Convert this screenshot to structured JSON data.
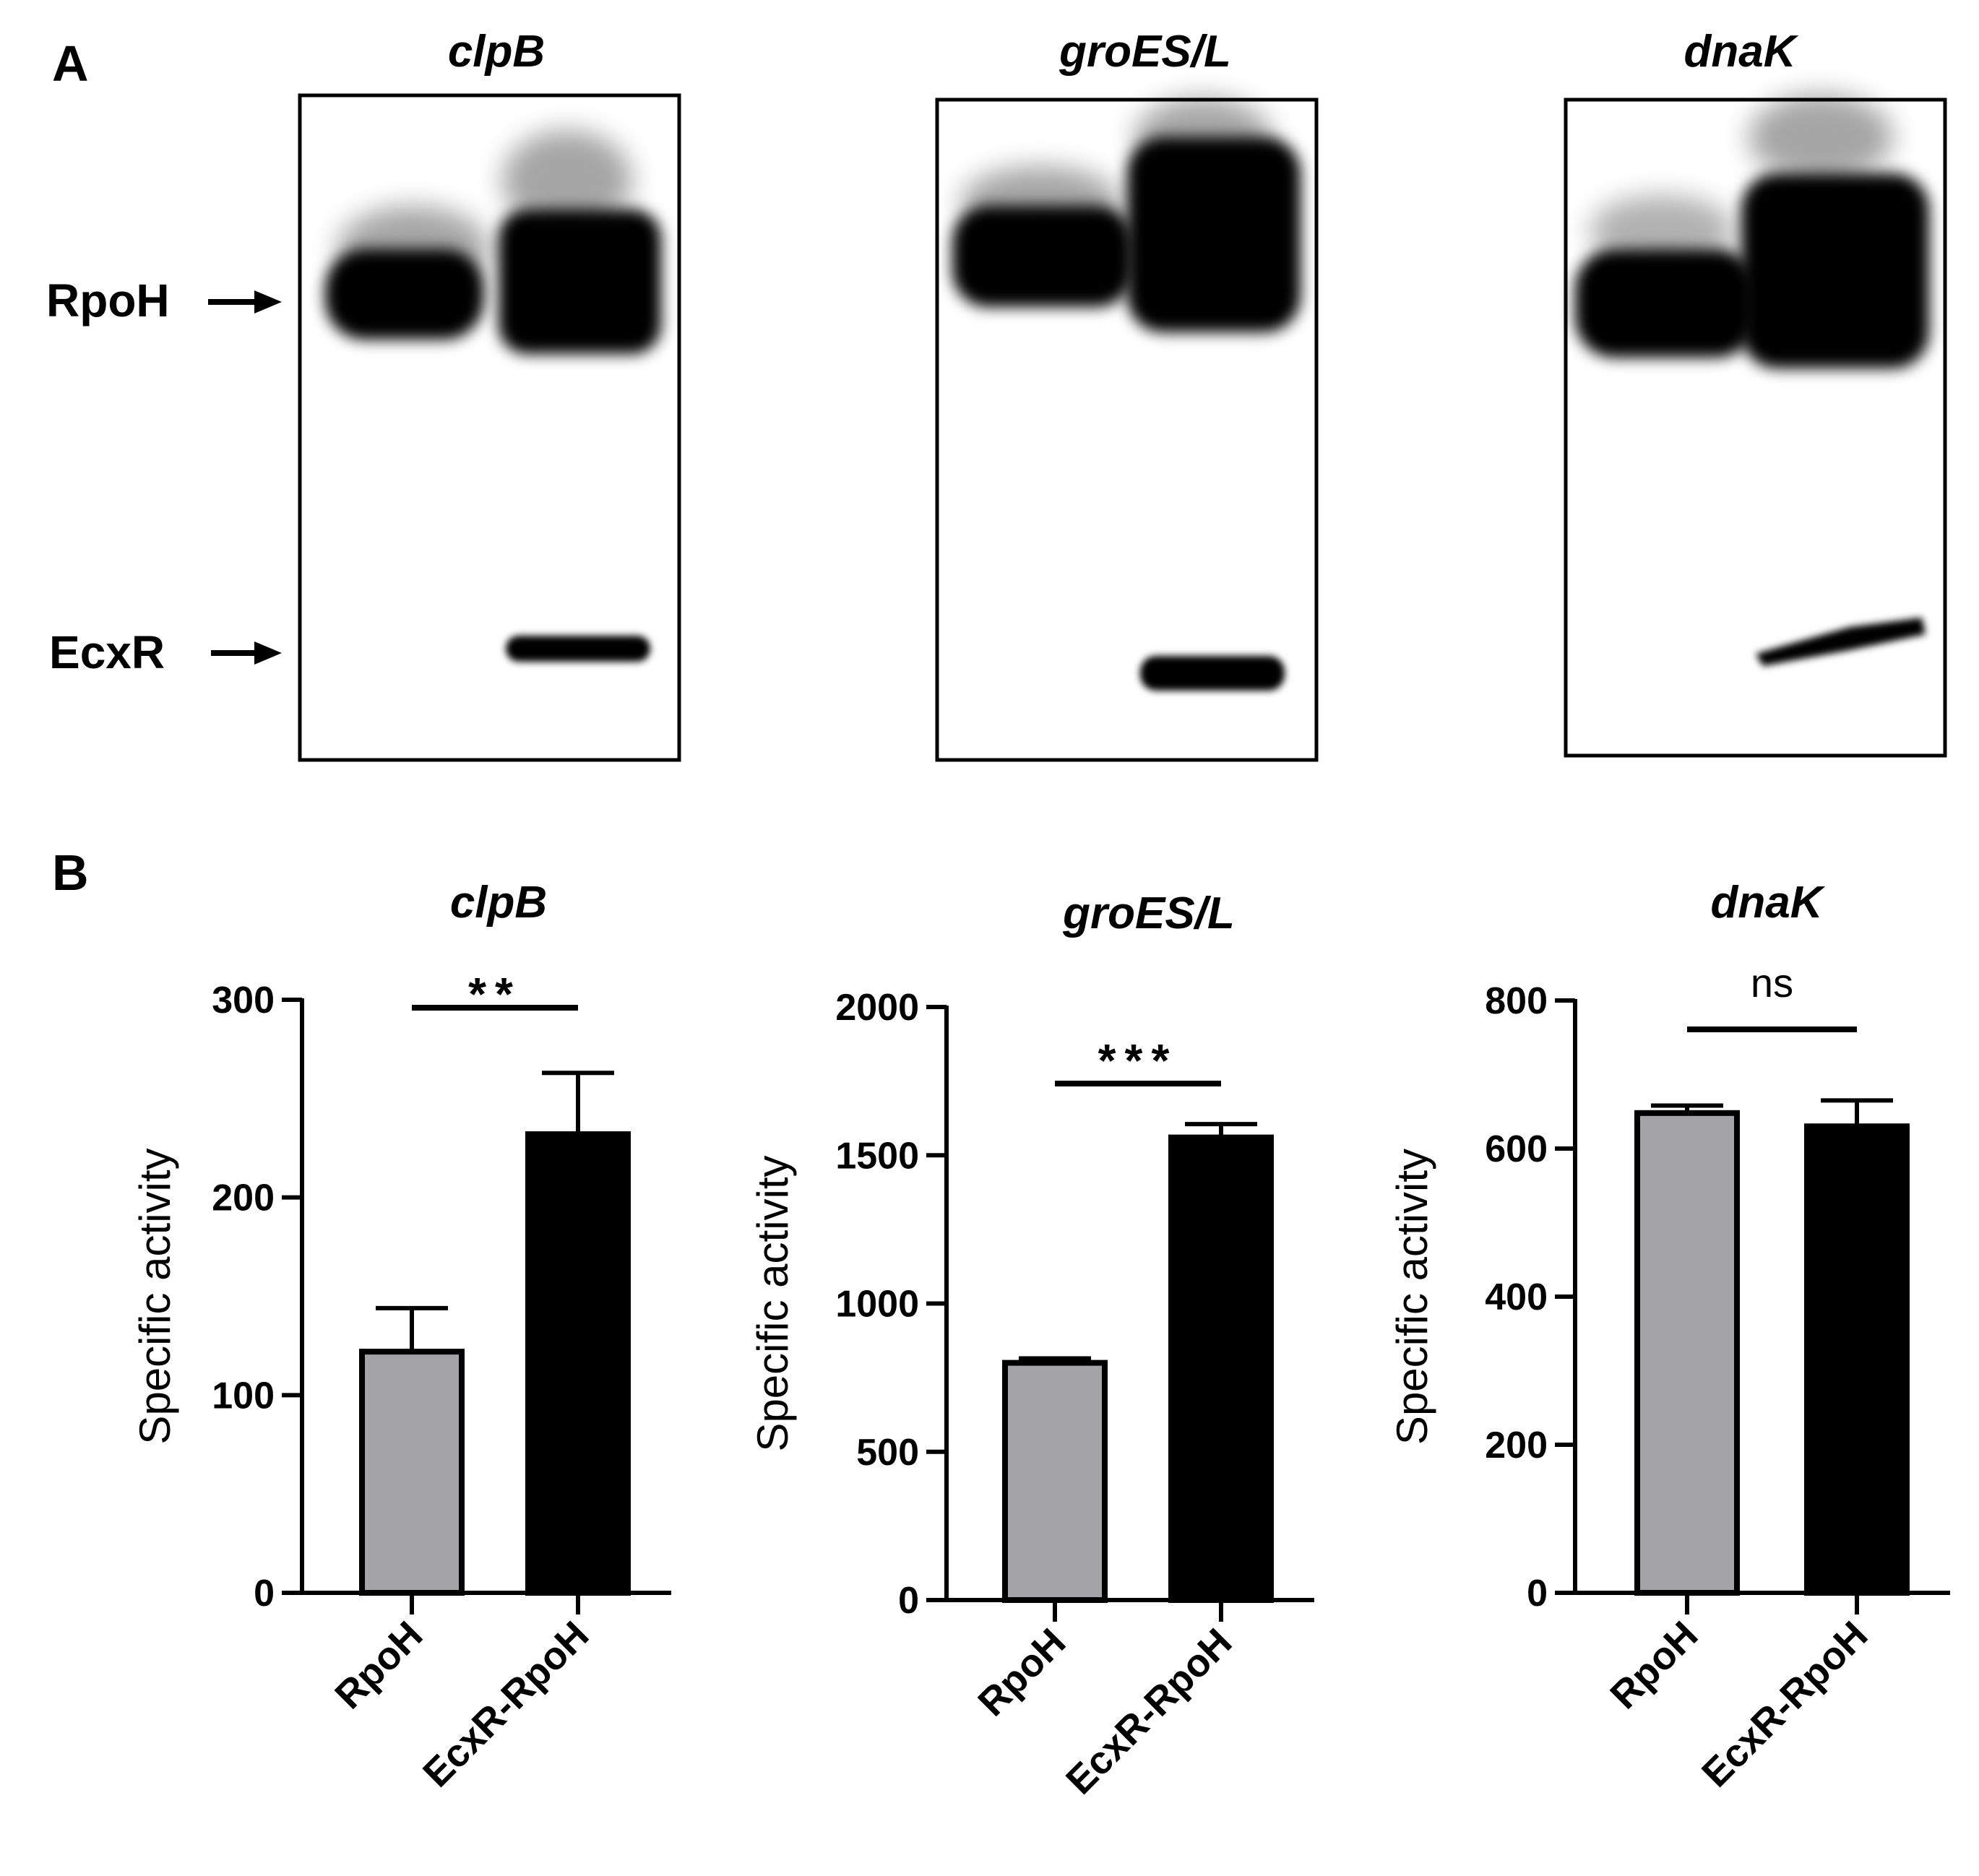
{
  "panel_letters": {
    "a": "A",
    "b": "B"
  },
  "gels": {
    "titles": [
      "clpB",
      "groES/L",
      "dnaK"
    ],
    "markers": {
      "rpoh": "RpoH",
      "ecxr": "EcxR"
    }
  },
  "chart_data": [
    {
      "type": "bar",
      "title": "clpB",
      "xlabel": "",
      "ylabel": "Specific activity",
      "categories": [
        "RpoH",
        "EcxR-RpoH"
      ],
      "values": [
        122,
        232
      ],
      "errors": [
        22,
        31
      ],
      "bar_colors": [
        "#a3a3a8",
        "#000000"
      ],
      "ylim": [
        0,
        300
      ],
      "yticks": [
        0,
        100,
        200,
        300
      ],
      "yticklabels": [
        "0",
        "100",
        "200",
        "300"
      ],
      "significance": "**"
    },
    {
      "type": "bar",
      "title": "groES/L",
      "xlabel": "",
      "ylabel": "Specific activity",
      "categories": [
        "RpoH",
        "EcxR-RpoH"
      ],
      "values": [
        800,
        1560
      ],
      "errors": [
        15,
        45
      ],
      "bar_colors": [
        "#a3a3a8",
        "#000000"
      ],
      "ylim": [
        0,
        2000
      ],
      "yticks": [
        0,
        500,
        1000,
        1500,
        2000
      ],
      "yticklabels": [
        "0",
        "500",
        "1000",
        "1500",
        "2000"
      ],
      "significance": "***"
    },
    {
      "type": "bar",
      "title": "dnaK",
      "xlabel": "",
      "ylabel": "Specific activity",
      "categories": [
        "RpoH",
        "EcxR-RpoH"
      ],
      "values": [
        648,
        630
      ],
      "errors": [
        10,
        35
      ],
      "bar_colors": [
        "#a3a3a8",
        "#000000"
      ],
      "ylim": [
        0,
        800
      ],
      "yticks": [
        0,
        200,
        400,
        600,
        800
      ],
      "yticklabels": [
        "0",
        "200",
        "400",
        "600",
        "800"
      ],
      "significance": "ns"
    }
  ]
}
